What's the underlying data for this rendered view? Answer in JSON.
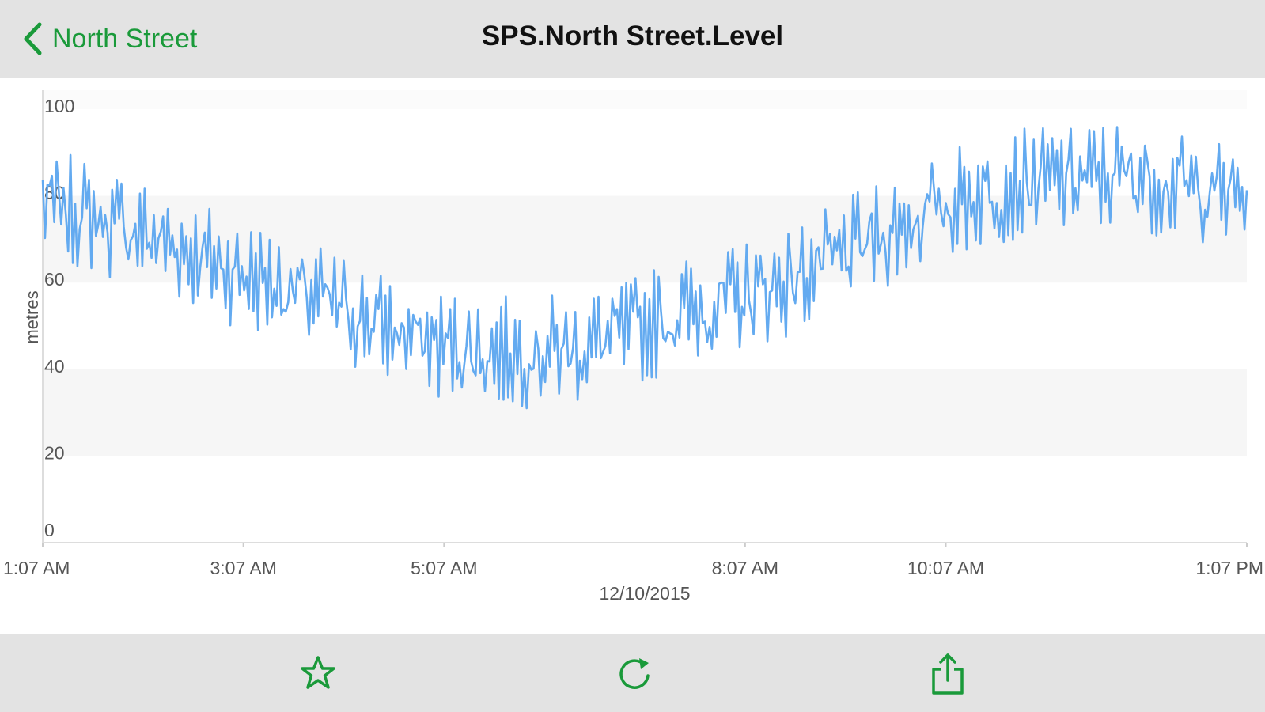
{
  "nav": {
    "back_label": "North Street",
    "title": "SPS.North Street.Level"
  },
  "icons": {
    "back": "chevron-left-icon",
    "favorite": "star-icon",
    "refresh": "refresh-icon",
    "share": "share-icon"
  },
  "colors": {
    "accent": "#1a9a3a",
    "series": "#63aaf0",
    "band": "#f6f6f6"
  },
  "chart_data": {
    "type": "line",
    "title": "",
    "xlabel": "12/10/2015",
    "ylabel": "metres",
    "ylim": [
      0,
      100
    ],
    "yticks": [
      "100",
      "80",
      "60",
      "40",
      "20",
      "0"
    ],
    "xticks": [
      "1:07 AM",
      "3:07 AM",
      "5:07 AM",
      "8:07 AM",
      "10:07 AM",
      "1:07 PM"
    ],
    "xrange_hours": [
      1.1167,
      13.1167
    ],
    "xtick_hours": [
      1.1167,
      3.1167,
      5.1167,
      8.1167,
      10.1167,
      13.1167
    ],
    "grid": "alternating horizontal bands",
    "legend": "none",
    "series": [
      {
        "x_hours": [
          1.12,
          1.5,
          2.0,
          2.5,
          3.0,
          3.5,
          4.0,
          4.5,
          5.0,
          5.5,
          6.0,
          6.5,
          7.0,
          7.5,
          8.0,
          8.5,
          9.0,
          9.5,
          10.0,
          10.5,
          11.0,
          11.5,
          12.0,
          12.5,
          13.1
        ],
        "values": [
          78,
          76,
          72,
          68,
          63,
          59,
          55,
          50,
          46,
          44,
          44,
          45,
          49,
          53,
          56,
          60,
          65,
          71,
          77,
          81,
          83,
          84,
          85,
          82,
          80
        ]
      }
    ]
  }
}
